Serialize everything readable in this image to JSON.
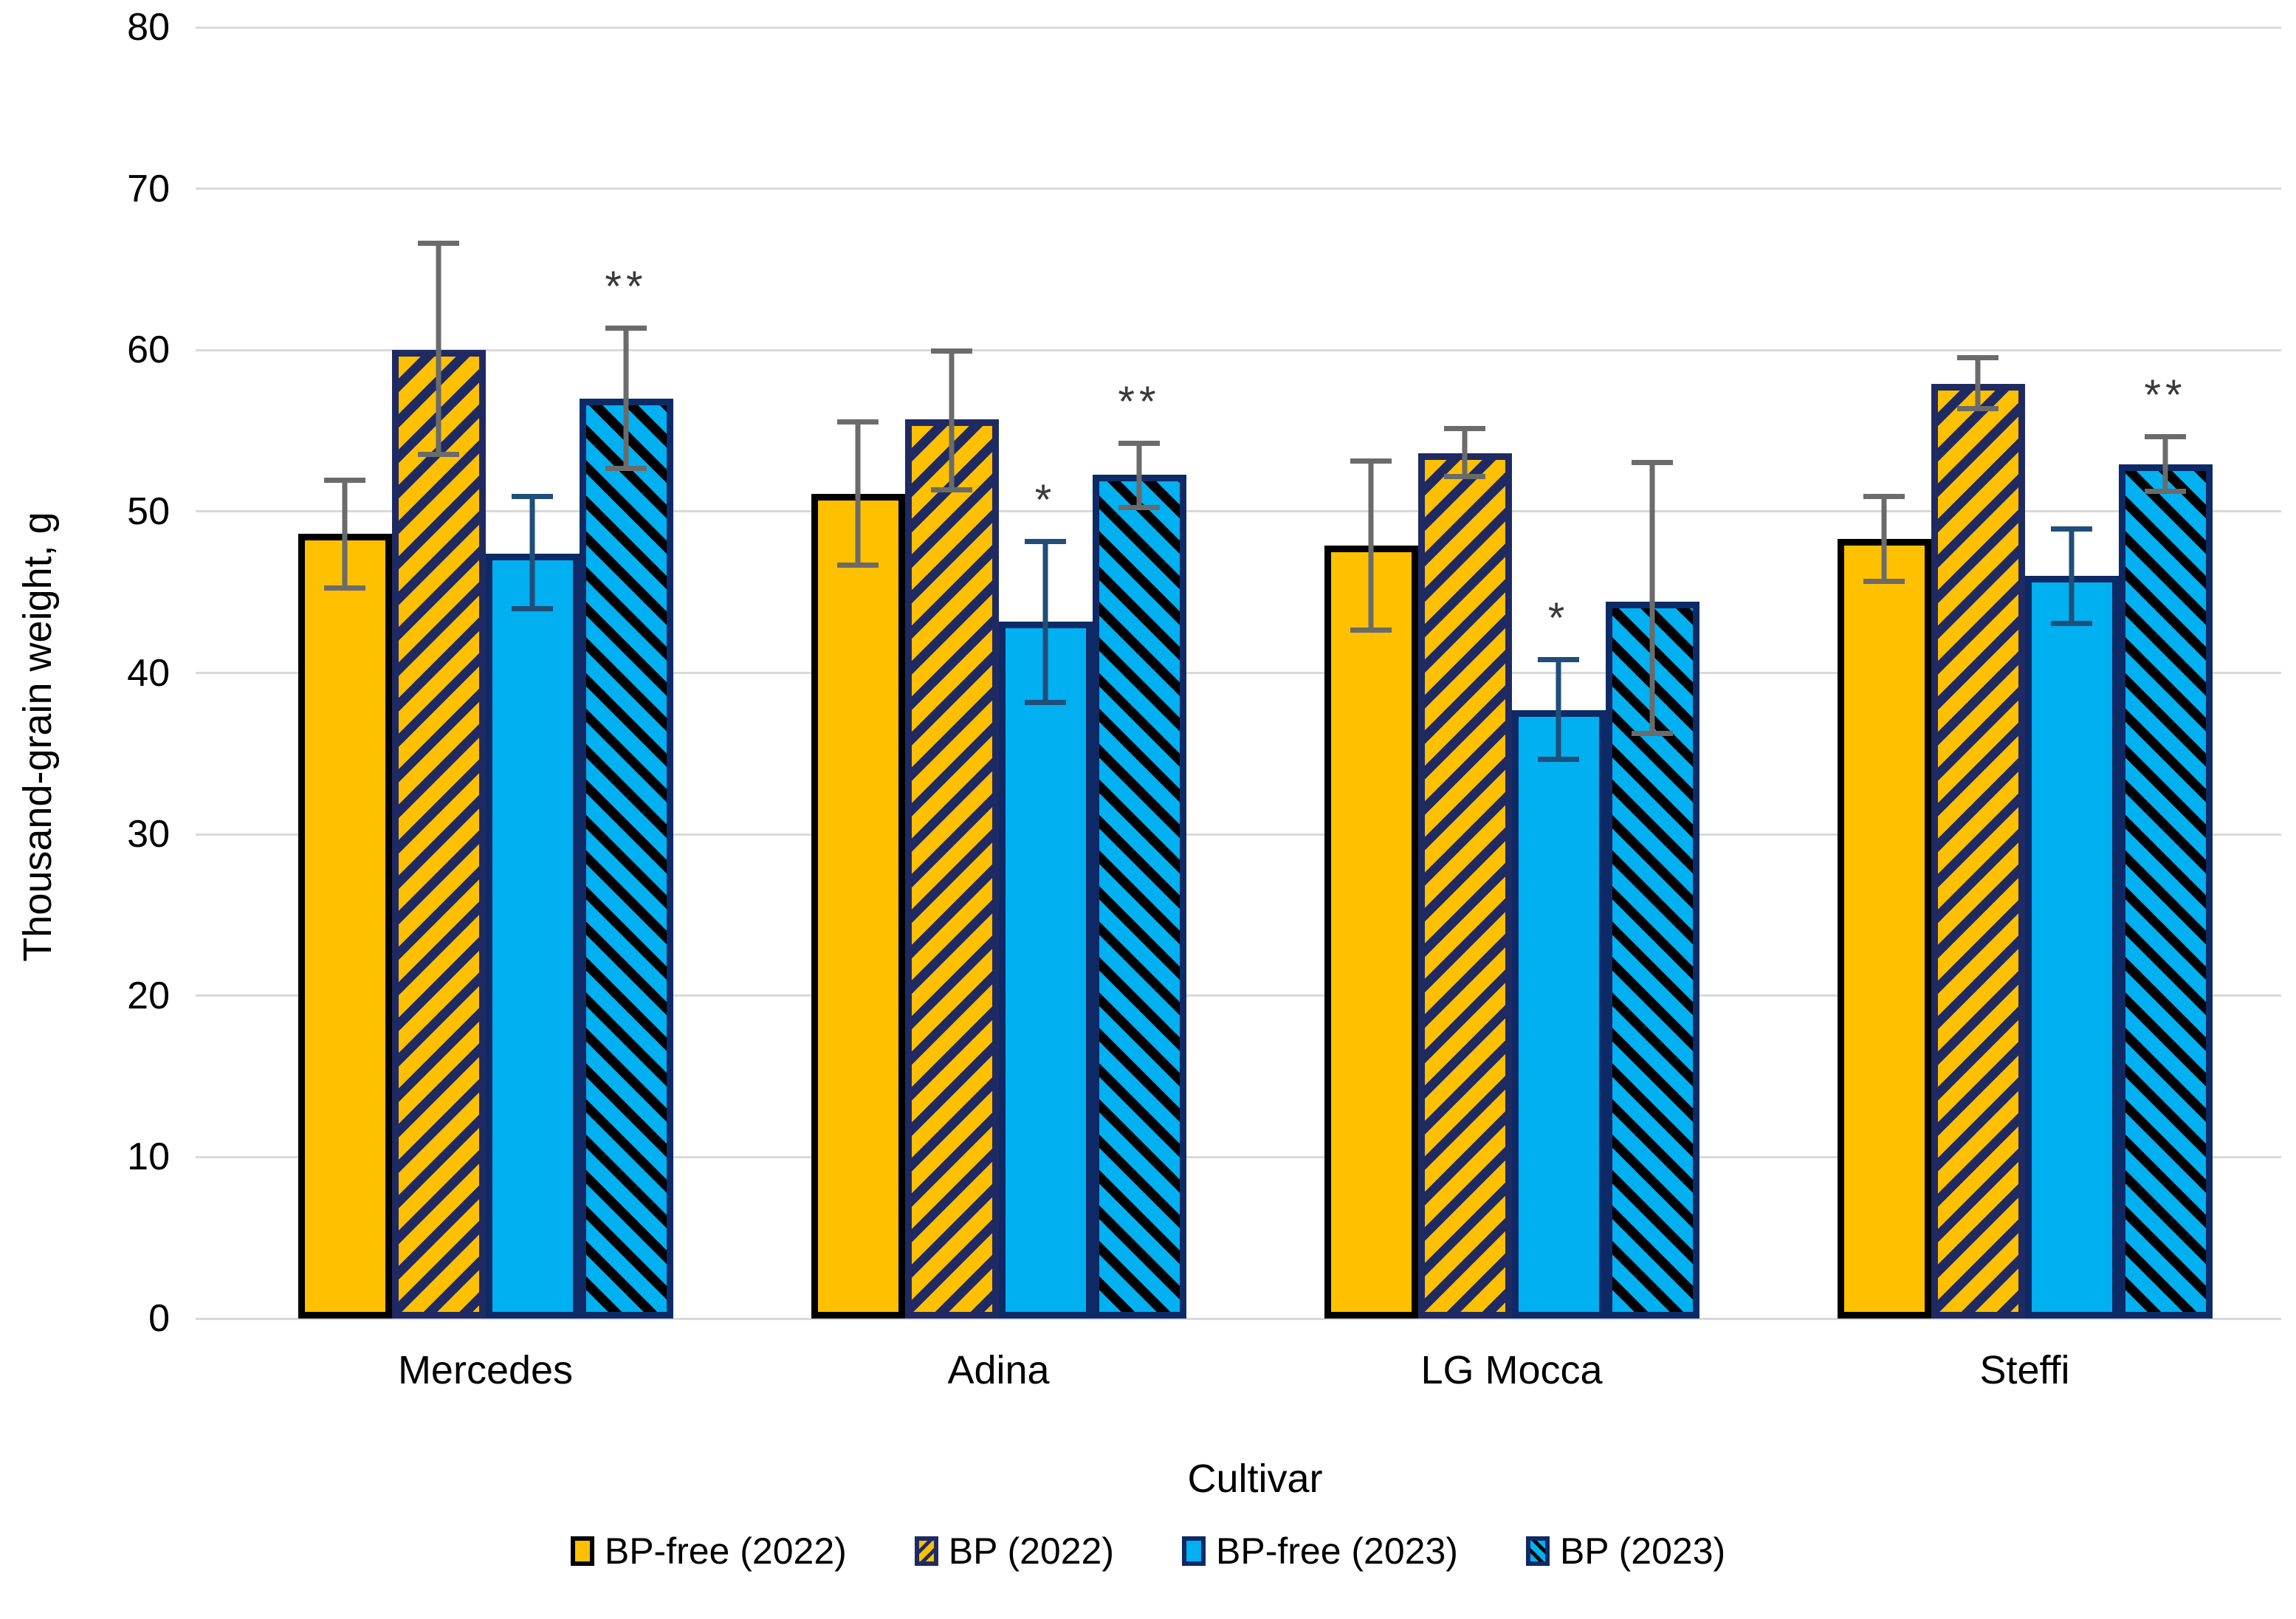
{
  "figure": {
    "background": "#FFFFFF",
    "gridline_color": "#D9D9D9",
    "significance_color": "#3A3A3A"
  },
  "chart_data": {
    "type": "bar",
    "title": "",
    "xlabel": "Cultivar",
    "ylabel": "Thousand-grain weight, g",
    "ylim": [
      0,
      80
    ],
    "yticks": [
      80,
      70,
      60,
      50,
      40,
      30,
      20,
      10,
      0
    ],
    "grid": "horizontal",
    "legend_position": "bottom",
    "categories": [
      "Mercedes",
      "Adina",
      "LG Mocca",
      "Steffi"
    ],
    "series": [
      {
        "name": "BP-free (2022)",
        "fill": "#FFC000",
        "pattern": "solid",
        "hatch_color": null,
        "border": "#000000",
        "error_color": "#6B6B6B",
        "values": [
          48.6,
          51.1,
          47.9,
          48.3
        ],
        "error_up": [
          3.5,
          4.6,
          5.4,
          2.8
        ],
        "error_down": [
          3.5,
          4.6,
          5.4,
          2.8
        ],
        "significance": [
          "",
          "",
          "",
          ""
        ]
      },
      {
        "name": "BP (2022)",
        "fill": "#FFC000",
        "pattern": "diagonal-up",
        "hatch_color": "#1F2A63",
        "border": "#1F2A63",
        "error_color": "#6B6B6B",
        "values": [
          60.0,
          55.7,
          53.6,
          57.9
        ],
        "error_up": [
          6.8,
          4.4,
          1.7,
          1.8
        ],
        "error_down": [
          6.6,
          4.5,
          1.6,
          1.7
        ],
        "significance": [
          "",
          "",
          "",
          ""
        ]
      },
      {
        "name": "BP-free (2023)",
        "fill": "#00B0F0",
        "pattern": "solid",
        "hatch_color": null,
        "border": "#0D2A66",
        "error_color": "#1F4E79",
        "values": [
          47.4,
          43.2,
          37.7,
          46.0
        ],
        "error_up": [
          3.7,
          5.1,
          3.3,
          3.1
        ],
        "error_down": [
          3.6,
          5.2,
          3.2,
          3.1
        ],
        "significance": [
          "",
          "*",
          "*",
          ""
        ]
      },
      {
        "name": "BP (2023)",
        "fill": "#00B0F0",
        "pattern": "diagonal-down",
        "hatch_color": "#000000",
        "border": "#0D2A66",
        "error_color": "#6B6B6B",
        "values": [
          57.0,
          52.3,
          44.4,
          52.9
        ],
        "error_up": [
          4.5,
          2.1,
          8.8,
          1.9
        ],
        "error_down": [
          4.5,
          2.2,
          8.3,
          1.8
        ],
        "significance": [
          "**",
          "**",
          "",
          "**"
        ]
      }
    ]
  }
}
